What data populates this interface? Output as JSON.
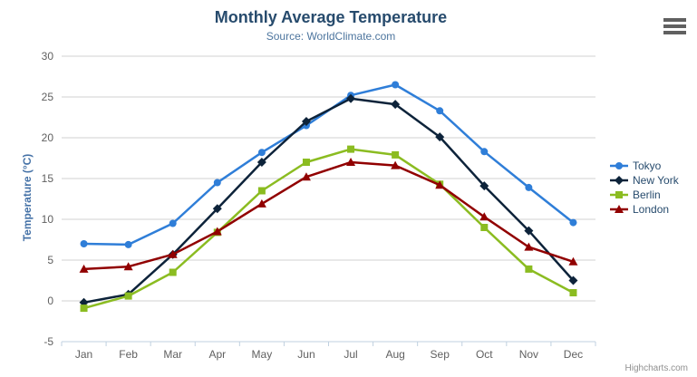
{
  "chart_data": {
    "type": "line",
    "title": "Monthly Average Temperature",
    "subtitle": "Source: WorldClimate.com",
    "xlabel": "",
    "ylabel": "Temperature (°C)",
    "categories": [
      "Jan",
      "Feb",
      "Mar",
      "Apr",
      "May",
      "Jun",
      "Jul",
      "Aug",
      "Sep",
      "Oct",
      "Nov",
      "Dec"
    ],
    "ylim": [
      -5,
      30
    ],
    "yticks": [
      -5,
      0,
      5,
      10,
      15,
      20,
      25,
      30
    ],
    "grid": "horizontal",
    "legend_position": "right-middle",
    "series": [
      {
        "name": "Tokyo",
        "color": "#2f7ed8",
        "marker": "circle",
        "values": [
          7.0,
          6.9,
          9.5,
          14.5,
          18.2,
          21.5,
          25.2,
          26.5,
          23.3,
          18.3,
          13.9,
          9.6
        ]
      },
      {
        "name": "New York",
        "color": "#0d233a",
        "marker": "diamond",
        "values": [
          -0.2,
          0.8,
          5.7,
          11.3,
          17.0,
          22.0,
          24.8,
          24.1,
          20.1,
          14.1,
          8.6,
          2.5
        ]
      },
      {
        "name": "Berlin",
        "color": "#8bbc21",
        "marker": "square",
        "values": [
          -0.9,
          0.6,
          3.5,
          8.4,
          13.5,
          17.0,
          18.6,
          17.9,
          14.3,
          9.0,
          3.9,
          1.0
        ]
      },
      {
        "name": "London",
        "color": "#910000",
        "marker": "triangle",
        "values": [
          3.9,
          4.2,
          5.7,
          8.5,
          11.9,
          15.2,
          17.0,
          16.6,
          14.2,
          10.3,
          6.6,
          4.8
        ]
      }
    ],
    "credits": "Highcharts.com",
    "colors": {
      "title": "#274b6d",
      "subtitle": "#4d759e",
      "axis_title": "#4572a7",
      "tick_label": "#606060",
      "grid_line": "#d0d0d0",
      "axis_line": "#c0d0e0",
      "legend_text": "#274b6d",
      "credits": "#909090"
    },
    "icons": {
      "context_menu": "hamburger"
    }
  }
}
